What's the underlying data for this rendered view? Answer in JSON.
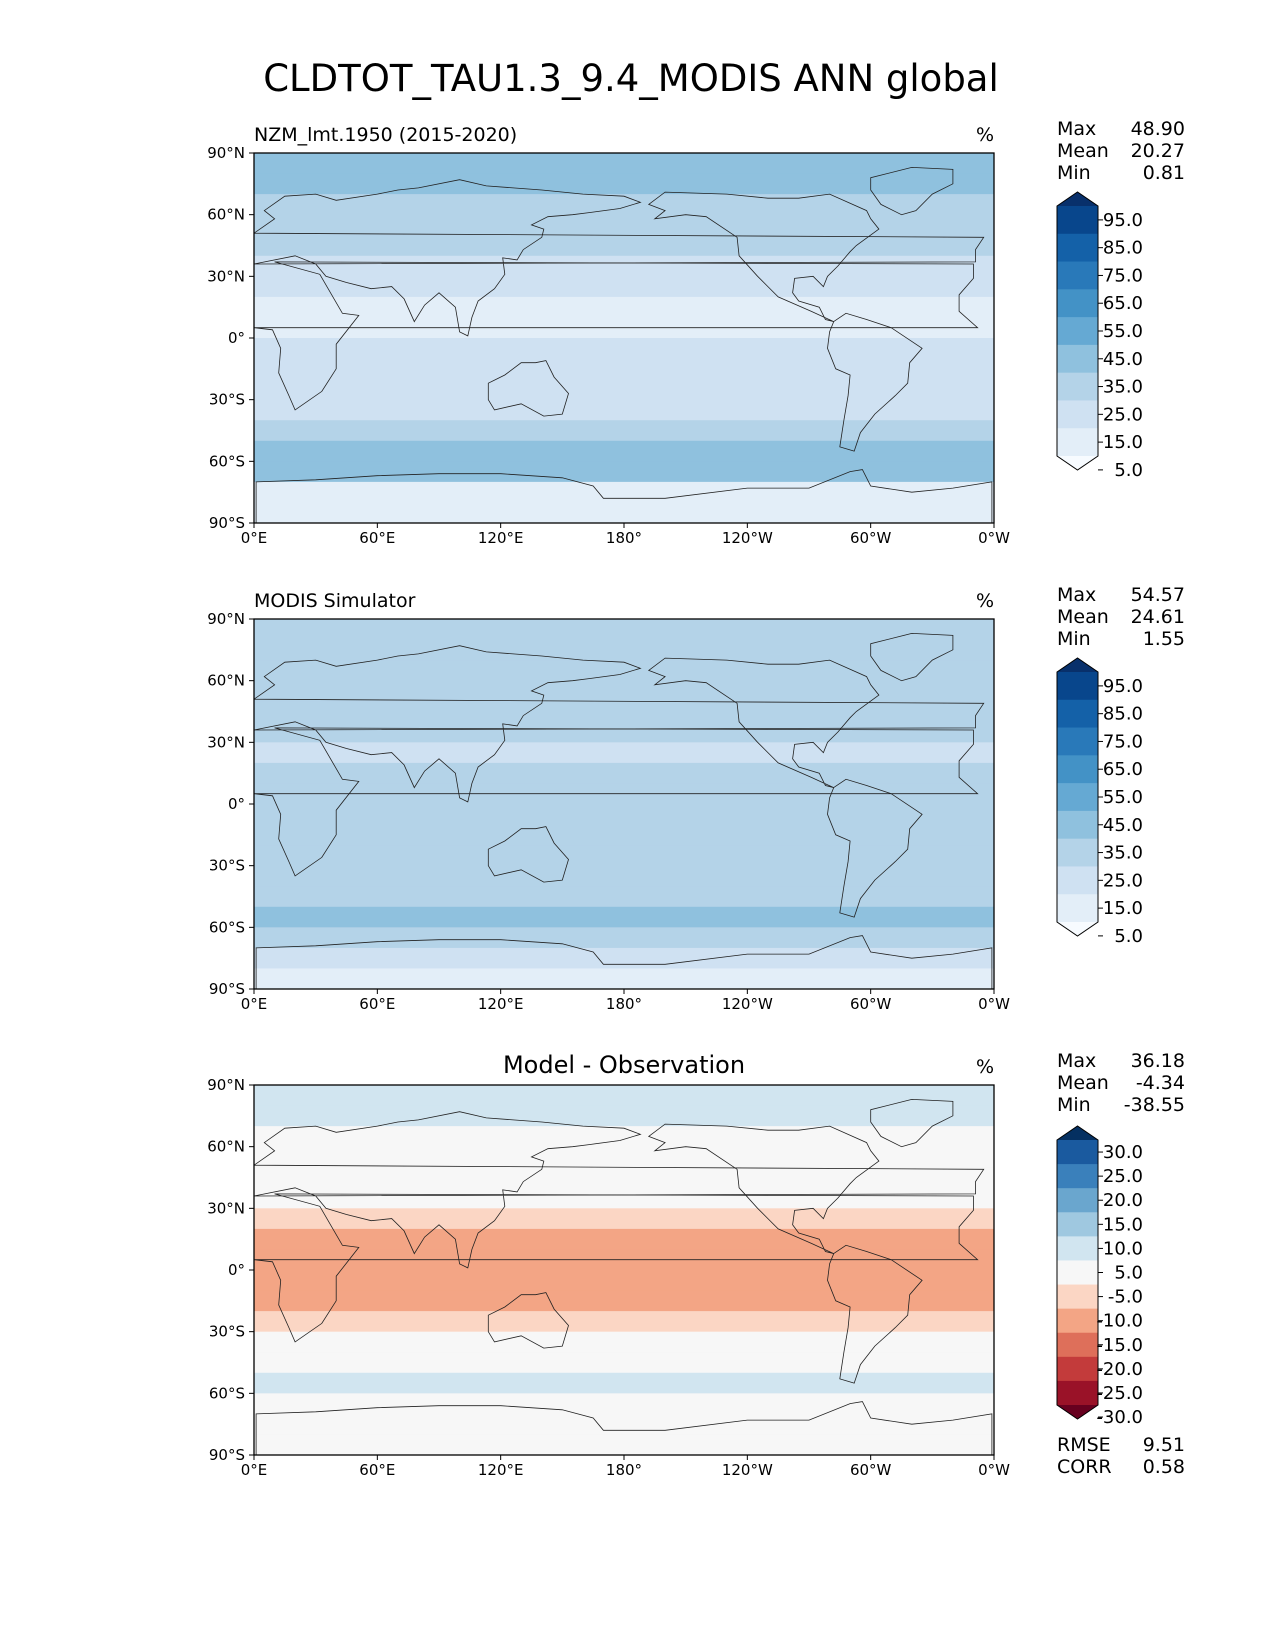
{
  "figure_title": "CLDTOT_TAU1.3_9.4_MODIS ANN global",
  "chart_data": [
    {
      "type": "heatmap",
      "panel": "test",
      "title": "NZM_lmt.1950 (2015-2020)",
      "units": "%",
      "x_ticks": [
        "0°E",
        "60°E",
        "120°E",
        "180°",
        "120°W",
        "60°W",
        "0°W"
      ],
      "y_ticks": [
        "90°N",
        "60°N",
        "30°N",
        "0°",
        "30°S",
        "60°S",
        "90°S"
      ],
      "xlim": [
        0,
        360
      ],
      "ylim": [
        -90,
        90
      ],
      "stats": [
        {
          "label": "Max",
          "value": "48.90"
        },
        {
          "label": "Mean",
          "value": "20.27"
        },
        {
          "label": "Min",
          "value": "0.81"
        }
      ],
      "colorbar": {
        "labels": [
          "95.0",
          "85.0",
          "75.0",
          "65.0",
          "55.0",
          "45.0",
          "35.0",
          "25.0",
          "15.0",
          "5.0"
        ],
        "colors": [
          "#08306b",
          "#08468c",
          "#1461a8",
          "#2979b9",
          "#4392c6",
          "#65a9d3",
          "#8fc1de",
          "#b4d3e8",
          "#cfe1f2",
          "#e3eef8",
          "#f7fbff"
        ]
      },
      "bands": [
        {
          "lat": 85,
          "v": 38
        },
        {
          "lat": 75,
          "v": 36
        },
        {
          "lat": 65,
          "v": 32
        },
        {
          "lat": 55,
          "v": 30
        },
        {
          "lat": 45,
          "v": 26
        },
        {
          "lat": 35,
          "v": 22
        },
        {
          "lat": 25,
          "v": 15
        },
        {
          "lat": 15,
          "v": 12
        },
        {
          "lat": 5,
          "v": 13
        },
        {
          "lat": -5,
          "v": 16
        },
        {
          "lat": -15,
          "v": 15
        },
        {
          "lat": -25,
          "v": 18
        },
        {
          "lat": -35,
          "v": 24
        },
        {
          "lat": -45,
          "v": 32
        },
        {
          "lat": -55,
          "v": 42
        },
        {
          "lat": -65,
          "v": 38
        },
        {
          "lat": -75,
          "v": 14
        },
        {
          "lat": -85,
          "v": 10
        }
      ]
    },
    {
      "type": "heatmap",
      "panel": "reference",
      "title": "MODIS Simulator",
      "units": "%",
      "x_ticks": [
        "0°E",
        "60°E",
        "120°E",
        "180°",
        "120°W",
        "60°W",
        "0°W"
      ],
      "y_ticks": [
        "90°N",
        "60°N",
        "30°N",
        "0°",
        "30°S",
        "60°S",
        "90°S"
      ],
      "xlim": [
        0,
        360
      ],
      "ylim": [
        -90,
        90
      ],
      "stats": [
        {
          "label": "Max",
          "value": "54.57"
        },
        {
          "label": "Mean",
          "value": "24.61"
        },
        {
          "label": "Min",
          "value": "1.55"
        }
      ],
      "colorbar": {
        "labels": [
          "95.0",
          "85.0",
          "75.0",
          "65.0",
          "55.0",
          "45.0",
          "35.0",
          "25.0",
          "15.0",
          "5.0"
        ],
        "colors": [
          "#08306b",
          "#08468c",
          "#1461a8",
          "#2979b9",
          "#4392c6",
          "#65a9d3",
          "#8fc1de",
          "#b4d3e8",
          "#cfe1f2",
          "#e3eef8",
          "#f7fbff"
        ]
      },
      "bands": [
        {
          "lat": 85,
          "v": 30
        },
        {
          "lat": 75,
          "v": 31
        },
        {
          "lat": 65,
          "v": 30
        },
        {
          "lat": 55,
          "v": 30
        },
        {
          "lat": 45,
          "v": 28
        },
        {
          "lat": 35,
          "v": 26
        },
        {
          "lat": 25,
          "v": 22
        },
        {
          "lat": 15,
          "v": 26
        },
        {
          "lat": 5,
          "v": 30
        },
        {
          "lat": -5,
          "v": 29
        },
        {
          "lat": -15,
          "v": 27
        },
        {
          "lat": -25,
          "v": 25
        },
        {
          "lat": -35,
          "v": 28
        },
        {
          "lat": -45,
          "v": 32
        },
        {
          "lat": -55,
          "v": 36
        },
        {
          "lat": -65,
          "v": 34
        },
        {
          "lat": -75,
          "v": 16
        },
        {
          "lat": -85,
          "v": 12
        }
      ]
    },
    {
      "type": "heatmap",
      "panel": "difference",
      "title": "Model - Observation",
      "units": "%",
      "x_ticks": [
        "0°E",
        "60°E",
        "120°E",
        "180°",
        "120°W",
        "60°W",
        "0°W"
      ],
      "y_ticks": [
        "90°N",
        "60°N",
        "30°N",
        "0°",
        "30°S",
        "60°S",
        "90°S"
      ],
      "xlim": [
        0,
        360
      ],
      "ylim": [
        -90,
        90
      ],
      "stats": [
        {
          "label": "Max",
          "value": "36.18"
        },
        {
          "label": "Mean",
          "value": "-4.34"
        },
        {
          "label": "Min",
          "value": "-38.55"
        }
      ],
      "extra_stats": [
        {
          "label": "RMSE",
          "value": "9.51"
        },
        {
          "label": "CORR",
          "value": "0.58"
        }
      ],
      "colorbar": {
        "labels": [
          "30.0",
          "25.0",
          "20.0",
          "15.0",
          "10.0",
          "5.0",
          "-5.0",
          "-10.0",
          "-15.0",
          "-20.0",
          "-25.0",
          "-30.0"
        ],
        "colors": [
          "#053061",
          "#1a5a9f",
          "#3a80bb",
          "#6aa6ce",
          "#9fc8e0",
          "#d1e5f0",
          "#f7f7f7",
          "#fbd6c4",
          "#f3a585",
          "#de6f5a",
          "#c33b3b",
          "#9a1228",
          "#67001f"
        ]
      },
      "bands": [
        {
          "lat": 85,
          "v": 8
        },
        {
          "lat": 75,
          "v": 5
        },
        {
          "lat": 65,
          "v": 2
        },
        {
          "lat": 55,
          "v": 1
        },
        {
          "lat": 45,
          "v": -1
        },
        {
          "lat": 35,
          "v": -4
        },
        {
          "lat": 25,
          "v": -7
        },
        {
          "lat": 15,
          "v": -12
        },
        {
          "lat": 5,
          "v": -15
        },
        {
          "lat": -5,
          "v": -13
        },
        {
          "lat": -15,
          "v": -12
        },
        {
          "lat": -25,
          "v": -8
        },
        {
          "lat": -35,
          "v": -4
        },
        {
          "lat": -45,
          "v": 0
        },
        {
          "lat": -55,
          "v": 5
        },
        {
          "lat": -65,
          "v": 3
        },
        {
          "lat": -75,
          "v": -4
        },
        {
          "lat": -85,
          "v": -2
        }
      ]
    }
  ]
}
